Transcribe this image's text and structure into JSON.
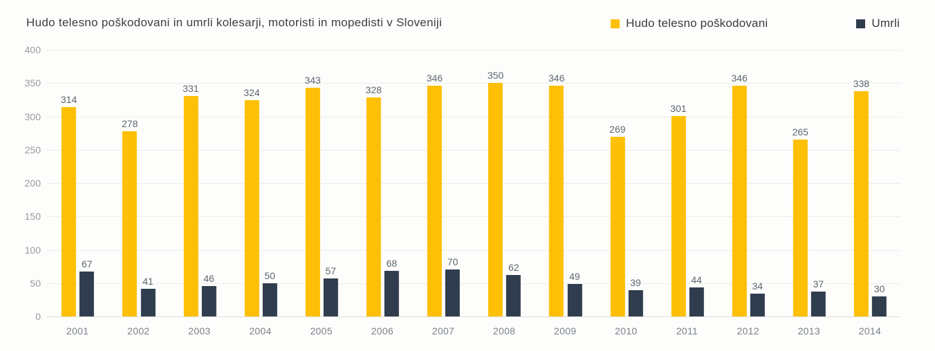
{
  "title": "Hudo telesno poškodovani in umrli kolesarji, motoristi in mopedisti v Sloveniji",
  "legend": [
    {
      "label": "Hudo telesno poškodovani",
      "color": "#fdc006"
    },
    {
      "label": "Umrli",
      "color": "#2f3d4e"
    }
  ],
  "colors": {
    "injured": "#fdc006",
    "deaths": "#2f3d4e",
    "background": "#fdfdfb",
    "gridline": "#ececec",
    "baseline": "#dedede"
  },
  "chart_data": {
    "type": "bar",
    "title": "Hudo telesno poškodovani in umrli kolesarji, motoristi in mopedisti v Sloveniji",
    "categories": [
      "2001",
      "2002",
      "2003",
      "2004",
      "2005",
      "2006",
      "2007",
      "2008",
      "2009",
      "2010",
      "2011",
      "2012",
      "2013",
      "2014"
    ],
    "series": [
      {
        "name": "Hudo telesno poškodovani",
        "color": "#fdc006",
        "values": [
          314,
          278,
          331,
          324,
          343,
          328,
          346,
          350,
          346,
          269,
          301,
          346,
          265,
          338
        ]
      },
      {
        "name": "Umrli",
        "color": "#2f3d4e",
        "values": [
          67,
          41,
          46,
          50,
          57,
          68,
          70,
          62,
          49,
          39,
          44,
          34,
          37,
          30
        ]
      }
    ],
    "xlabel": "",
    "ylabel": "",
    "ylim": [
      0,
      400
    ],
    "yticks": [
      0,
      50,
      100,
      150,
      200,
      250,
      300,
      350,
      400
    ],
    "grid": "horizontal",
    "legend_position": "top-right",
    "value_labels": true
  }
}
